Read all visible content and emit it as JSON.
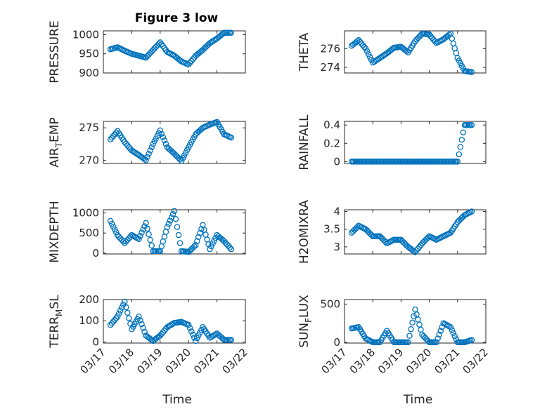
{
  "figure": {
    "title": "Figure 3 low",
    "marker_color": "#0072BD"
  },
  "chart_data": [
    {
      "type": "scatter",
      "xaxis": "date",
      "title": "Figure 3 low",
      "ylabel": "PRESSURE",
      "ylim": [
        900,
        1010
      ],
      "yticks": [
        900,
        950,
        1000
      ],
      "ytick_labels": [
        "900",
        "950",
        "1000"
      ],
      "xticks": [],
      "xlabel": "",
      "x": [
        "03/17 06:00",
        "03/17 12:00",
        "03/17 18:00",
        "03/18 00:00",
        "03/18 06:00",
        "03/18 12:00",
        "03/18 18:00",
        "03/19 00:00",
        "03/19 06:00",
        "03/19 12:00",
        "03/19 18:00",
        "03/20 00:00",
        "03/20 06:00",
        "03/20 12:00",
        "03/20 18:00",
        "03/21 00:00",
        "03/21 06:00",
        "03/21 12:00"
      ],
      "y": [
        962,
        967,
        958,
        950,
        945,
        940,
        960,
        980,
        955,
        945,
        930,
        922,
        945,
        960,
        978,
        990,
        1005,
        1005
      ]
    },
    {
      "type": "scatter",
      "xaxis": "date",
      "ylabel": "THETA",
      "ylim": [
        273.4,
        277.9
      ],
      "yticks": [
        274,
        276
      ],
      "ytick_labels": [
        "274",
        "276"
      ],
      "xticks": [],
      "xlabel": "",
      "x": [
        "03/17 06:00",
        "03/17 12:00",
        "03/17 18:00",
        "03/18 00:00",
        "03/18 06:00",
        "03/18 12:00",
        "03/18 18:00",
        "03/19 00:00",
        "03/19 06:00",
        "03/19 12:00",
        "03/19 18:00",
        "03/20 00:00",
        "03/20 06:00",
        "03/20 12:00",
        "03/20 18:00",
        "03/21 00:00",
        "03/21 06:00",
        "03/21 12:00"
      ],
      "y": [
        276.3,
        276.9,
        276.0,
        274.5,
        275.0,
        275.5,
        276.1,
        276.2,
        275.6,
        276.8,
        277.6,
        277.5,
        276.6,
        277.0,
        277.6,
        275.0,
        273.6,
        273.5
      ]
    },
    {
      "type": "scatter",
      "xaxis": "date",
      "ylabel": "AIR_TEMP",
      "ylabel_main": "AIR",
      "ylabel_sub": "T",
      "ylabel_rest": "EMP",
      "ylim": [
        269.5,
        276.0
      ],
      "yticks": [
        270,
        275
      ],
      "ytick_labels": [
        "270",
        "275"
      ],
      "xticks": [],
      "xlabel": "",
      "x": [
        "03/17 06:00",
        "03/17 12:00",
        "03/17 18:00",
        "03/18 00:00",
        "03/18 06:00",
        "03/18 12:00",
        "03/18 18:00",
        "03/19 00:00",
        "03/19 06:00",
        "03/19 12:00",
        "03/19 18:00",
        "03/20 00:00",
        "03/20 06:00",
        "03/20 12:00",
        "03/20 18:00",
        "03/21 00:00",
        "03/21 06:00",
        "03/21 12:00"
      ],
      "y": [
        273.2,
        274.5,
        272.8,
        271.5,
        270.8,
        270.0,
        272.5,
        274.6,
        272.0,
        271.0,
        269.9,
        272.0,
        274.0,
        275.0,
        275.5,
        275.9,
        274.0,
        273.5
      ]
    },
    {
      "type": "scatter",
      "xaxis": "date",
      "ylabel": "RAINFALL",
      "ylim": [
        -0.02,
        0.44
      ],
      "yticks": [
        0,
        0.2,
        0.4
      ],
      "ytick_labels": [
        "0",
        "0.2",
        "0.4"
      ],
      "xticks": [],
      "xlabel": "",
      "x": [
        "03/17 06:00",
        "03/17 12:00",
        "03/17 18:00",
        "03/18 00:00",
        "03/18 06:00",
        "03/18 12:00",
        "03/18 18:00",
        "03/19 00:00",
        "03/19 06:00",
        "03/19 12:00",
        "03/19 18:00",
        "03/20 00:00",
        "03/20 06:00",
        "03/20 12:00",
        "03/20 18:00",
        "03/21 00:00",
        "03/21 06:00",
        "03/21 12:00"
      ],
      "y": [
        0,
        0,
        0,
        0,
        0,
        0,
        0,
        0,
        0,
        0,
        0,
        0,
        0,
        0,
        0,
        0,
        0.4,
        0.4
      ]
    },
    {
      "type": "scatter",
      "xaxis": "date",
      "ylabel": "MIXDEPTH",
      "ylim": [
        -20,
        1080
      ],
      "yticks": [
        0,
        500,
        1000
      ],
      "ytick_labels": [
        "0",
        "500",
        "1000"
      ],
      "xticks": [],
      "xlabel": "",
      "x": [
        "03/17 06:00",
        "03/17 12:00",
        "03/17 18:00",
        "03/18 00:00",
        "03/18 06:00",
        "03/18 12:00",
        "03/18 18:00",
        "03/19 00:00",
        "03/19 06:00",
        "03/19 12:00",
        "03/19 18:00",
        "03/20 00:00",
        "03/20 06:00",
        "03/20 12:00",
        "03/20 18:00",
        "03/21 00:00",
        "03/21 06:00",
        "03/21 12:00"
      ],
      "y": [
        800,
        450,
        250,
        450,
        350,
        750,
        50,
        50,
        650,
        1050,
        50,
        30,
        200,
        700,
        100,
        450,
        300,
        100
      ]
    },
    {
      "type": "scatter",
      "xaxis": "date",
      "ylabel": "H2OMIXRA",
      "ylim": [
        2.8,
        4.05
      ],
      "yticks": [
        3,
        3.5,
        4
      ],
      "ytick_labels": [
        "3",
        "3.5",
        "4"
      ],
      "xticks": [],
      "xlabel": "",
      "x": [
        "03/17 06:00",
        "03/17 12:00",
        "03/17 18:00",
        "03/18 00:00",
        "03/18 06:00",
        "03/18 12:00",
        "03/18 18:00",
        "03/19 00:00",
        "03/19 06:00",
        "03/19 12:00",
        "03/19 18:00",
        "03/20 00:00",
        "03/20 06:00",
        "03/20 12:00",
        "03/20 18:00",
        "03/21 00:00",
        "03/21 06:00",
        "03/21 12:00"
      ],
      "y": [
        3.4,
        3.6,
        3.5,
        3.3,
        3.3,
        3.1,
        3.2,
        3.2,
        3.0,
        2.85,
        3.1,
        3.3,
        3.2,
        3.3,
        3.4,
        3.7,
        3.9,
        4.0
      ]
    },
    {
      "type": "scatter",
      "xaxis": "date",
      "ylabel": "TERR_MSL",
      "ylabel_main": "TERR",
      "ylabel_sub": "M",
      "ylabel_rest": "SL",
      "ylim": [
        -5,
        200
      ],
      "yticks": [
        0,
        100,
        200
      ],
      "ytick_labels": [
        "0",
        "100",
        "200"
      ],
      "xticks": [
        "03/17",
        "03/18",
        "03/19",
        "03/20",
        "03/21",
        "03/22"
      ],
      "xtick_labels": [
        "03/17",
        "03/18",
        "03/19",
        "03/20",
        "03/21",
        "03/22"
      ],
      "xlabel": "Time",
      "x": [
        "03/17 06:00",
        "03/17 12:00",
        "03/17 18:00",
        "03/18 00:00",
        "03/18 06:00",
        "03/18 12:00",
        "03/18 18:00",
        "03/19 00:00",
        "03/19 06:00",
        "03/19 12:00",
        "03/19 18:00",
        "03/20 00:00",
        "03/20 06:00",
        "03/20 12:00",
        "03/20 18:00",
        "03/21 00:00",
        "03/21 06:00",
        "03/21 12:00"
      ],
      "y": [
        80,
        120,
        190,
        60,
        120,
        30,
        5,
        30,
        70,
        90,
        95,
        80,
        5,
        70,
        20,
        40,
        10,
        10
      ]
    },
    {
      "type": "scatter",
      "xaxis": "date",
      "ylabel": "SUN_FLUX",
      "ylabel_main": "SUN",
      "ylabel_sub": "F",
      "ylabel_rest": "LUX",
      "ylim": [
        -10,
        560
      ],
      "yticks": [
        0,
        500
      ],
      "ytick_labels": [
        "0",
        "500"
      ],
      "xticks": [
        "03/17",
        "03/18",
        "03/19",
        "03/20",
        "03/21",
        "03/22"
      ],
      "xtick_labels": [
        "03/17",
        "03/18",
        "03/19",
        "03/20",
        "03/21",
        "03/22"
      ],
      "xlabel": "Time",
      "x": [
        "03/17 06:00",
        "03/17 12:00",
        "03/17 18:00",
        "03/18 00:00",
        "03/18 06:00",
        "03/18 12:00",
        "03/18 18:00",
        "03/19 00:00",
        "03/19 06:00",
        "03/19 12:00",
        "03/19 18:00",
        "03/20 00:00",
        "03/20 06:00",
        "03/20 12:00",
        "03/20 18:00",
        "03/21 00:00",
        "03/21 06:00",
        "03/21 12:00"
      ],
      "y": [
        180,
        200,
        50,
        0,
        0,
        150,
        0,
        0,
        0,
        430,
        100,
        0,
        0,
        250,
        200,
        0,
        0,
        30
      ]
    }
  ]
}
